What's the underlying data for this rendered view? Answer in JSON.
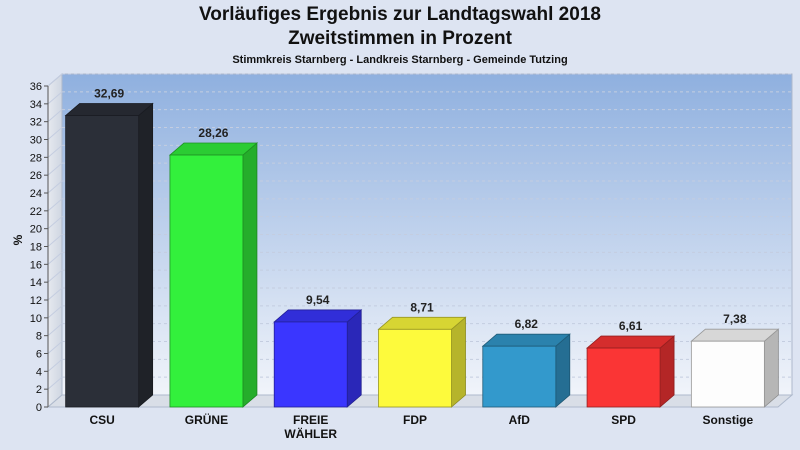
{
  "chart_data": {
    "type": "bar",
    "title": "Vorläufiges Ergebnis zur Landtagswahl 2018",
    "title_line2": "Zweitstimmen in Prozent",
    "subtitle": "Stimmkreis Starnberg - Landkreis Starnberg - Gemeinde Tutzing",
    "ylabel": "%",
    "xlabel": "",
    "ylim": [
      0,
      36
    ],
    "ytick_step": 2,
    "grid": true,
    "categories": [
      "CSU",
      "GRÜNE",
      "FREIE WÄHLER",
      "FDP",
      "AfD",
      "SPD",
      "Sonstige"
    ],
    "category_lines": [
      [
        "CSU"
      ],
      [
        "GRÜNE"
      ],
      [
        "FREIE",
        "WÄHLER"
      ],
      [
        "FDP"
      ],
      [
        "AfD"
      ],
      [
        "SPD"
      ],
      [
        "Sonstige"
      ]
    ],
    "values": [
      32.69,
      28.26,
      9.54,
      8.71,
      6.82,
      6.61,
      7.38
    ],
    "value_labels": [
      "32,69",
      "28,26",
      "9,54",
      "8,71",
      "6,82",
      "6,61",
      "7,38"
    ],
    "colors": [
      "#2b2f38",
      "#33f03c",
      "#3a36ff",
      "#fdfa3c",
      "#3399cc",
      "#fa3535",
      "#fdfdfd"
    ]
  }
}
